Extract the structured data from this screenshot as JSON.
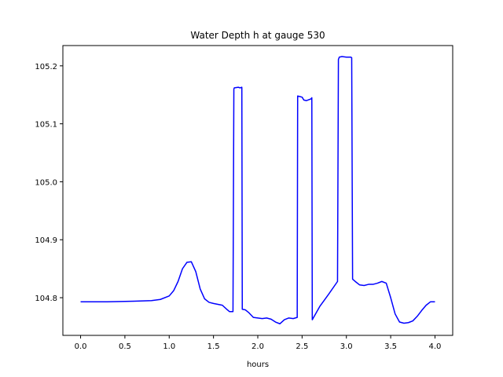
{
  "chart_data": {
    "type": "line",
    "title": "Water Depth h at gauge 530",
    "xlabel": "hours",
    "ylabel": "",
    "xlim": [
      -0.2,
      4.2
    ],
    "ylim": [
      104.735,
      105.235
    ],
    "xticks": [
      0.0,
      0.5,
      1.0,
      1.5,
      2.0,
      2.5,
      3.0,
      3.5,
      4.0
    ],
    "xtick_labels": [
      "0.0",
      "0.5",
      "1.0",
      "1.5",
      "2.0",
      "2.5",
      "3.0",
      "3.5",
      "4.0"
    ],
    "yticks": [
      104.8,
      104.9,
      105.0,
      105.1,
      105.2
    ],
    "ytick_labels": [
      "104.8",
      "104.9",
      "105.0",
      "105.1",
      "105.2"
    ],
    "grid": false,
    "legend": "none",
    "series": [
      {
        "color": "#0000ff",
        "x": [
          0.0,
          0.3,
          0.6,
          0.8,
          0.9,
          1.0,
          1.05,
          1.1,
          1.15,
          1.2,
          1.25,
          1.3,
          1.35,
          1.4,
          1.45,
          1.5,
          1.6,
          1.65,
          1.68,
          1.72,
          1.73,
          1.735,
          1.78,
          1.8,
          1.82,
          1.825,
          1.86,
          1.9,
          1.95,
          2.0,
          2.05,
          2.1,
          2.15,
          2.2,
          2.25,
          2.3,
          2.35,
          2.4,
          2.445,
          2.45,
          2.5,
          2.52,
          2.55,
          2.6,
          2.61,
          2.615,
          2.7,
          2.8,
          2.9,
          2.91,
          2.92,
          2.95,
          3.0,
          3.05,
          3.06,
          3.07,
          3.1,
          3.15,
          3.2,
          3.25,
          3.3,
          3.35,
          3.4,
          3.45,
          3.5,
          3.55,
          3.6,
          3.65,
          3.7,
          3.75,
          3.8,
          3.85,
          3.9,
          3.95,
          4.0
        ],
        "y": [
          104.793,
          104.793,
          104.794,
          104.795,
          104.797,
          104.803,
          104.812,
          104.828,
          104.85,
          104.861,
          104.862,
          104.845,
          104.815,
          104.798,
          104.792,
          104.79,
          104.787,
          104.78,
          104.776,
          104.776,
          105.16,
          105.162,
          105.163,
          105.162,
          105.163,
          104.78,
          104.779,
          104.774,
          104.766,
          104.765,
          104.764,
          104.765,
          104.763,
          104.758,
          104.755,
          104.762,
          104.765,
          104.764,
          104.766,
          105.148,
          105.146,
          105.141,
          105.14,
          105.143,
          105.145,
          104.762,
          104.785,
          104.806,
          104.828,
          105.211,
          105.215,
          105.216,
          105.215,
          105.215,
          105.214,
          104.832,
          104.828,
          104.822,
          104.821,
          104.823,
          104.823,
          104.825,
          104.828,
          104.825,
          104.8,
          104.772,
          104.758,
          104.756,
          104.757,
          104.76,
          104.768,
          104.778,
          104.787,
          104.793,
          104.793
        ]
      }
    ]
  }
}
